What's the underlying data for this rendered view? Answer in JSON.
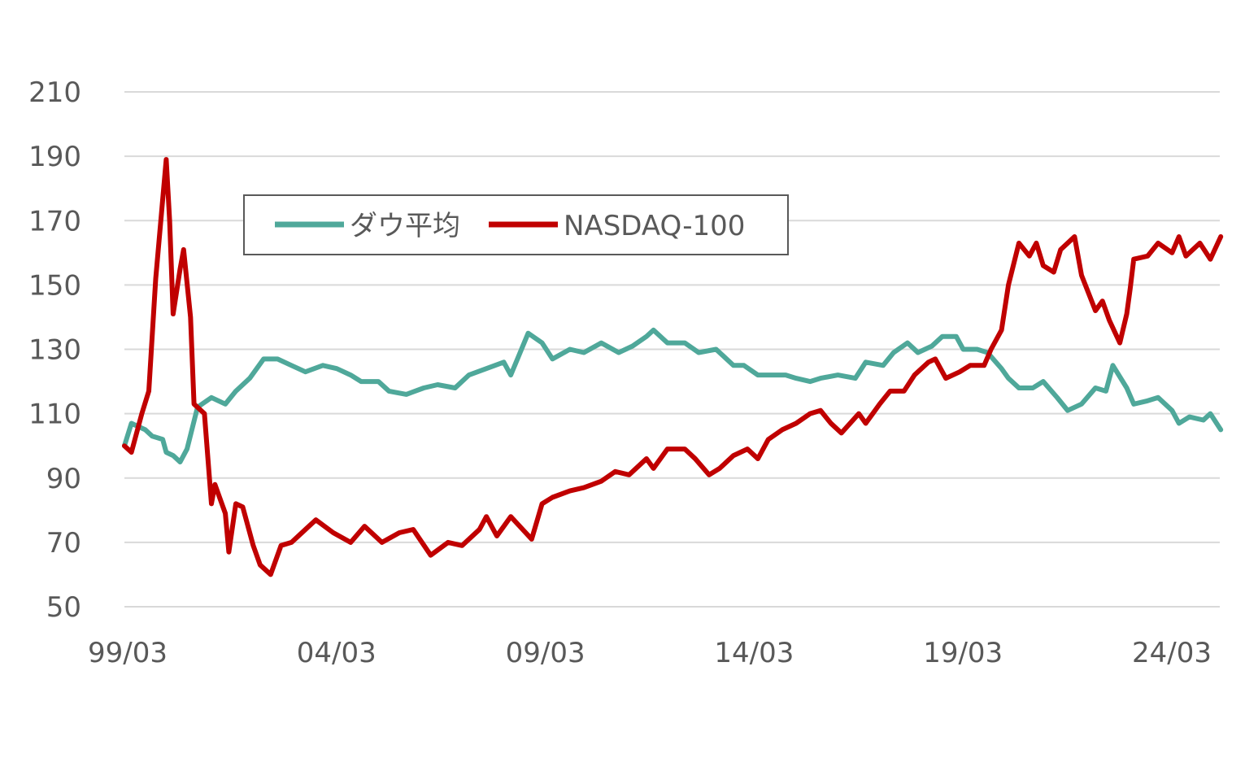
{
  "chart_data": {
    "type": "line",
    "title": "",
    "xlabel": "",
    "ylabel": "",
    "ylim": [
      50,
      210
    ],
    "yticks": [
      50,
      70,
      90,
      110,
      130,
      150,
      170,
      190,
      210
    ],
    "ytick_labels": [
      "50",
      "70",
      "90",
      "110",
      "130",
      "150",
      "170",
      "190",
      "210"
    ],
    "xlim": [
      "1999/03",
      "2025/06"
    ],
    "xticks": [
      "1999/03",
      "2004/03",
      "2009/03",
      "2014/03",
      "2019/03",
      "2024/03"
    ],
    "xtick_labels": [
      "99/03",
      "04/03",
      "09/03",
      "14/03",
      "19/03",
      "24/03"
    ],
    "grid": "horizontal",
    "legend_placement": "top-left, inside, boxed",
    "series": [
      {
        "name": "ダウ平均",
        "color": "#4fa89a",
        "x": [
          "1999/03",
          "1999/05",
          "1999/07",
          "1999/09",
          "1999/11",
          "2000/02",
          "2000/03",
          "2000/05",
          "2000/07",
          "2000/09",
          "2000/12",
          "2001/04",
          "2001/08",
          "2001/11",
          "2002/03",
          "2002/07",
          "2002/11",
          "2003/03",
          "2003/07",
          "2003/12",
          "2004/04",
          "2004/08",
          "2004/11",
          "2005/04",
          "2005/07",
          "2005/12",
          "2006/05",
          "2006/09",
          "2007/02",
          "2007/06",
          "2007/11",
          "2008/04",
          "2008/06",
          "2008/11",
          "2009/03",
          "2009/06",
          "2009/11",
          "2010/03",
          "2010/08",
          "2011/01",
          "2011/05",
          "2011/09",
          "2011/11",
          "2012/03",
          "2012/08",
          "2012/12",
          "2013/05",
          "2013/10",
          "2014/01",
          "2014/05",
          "2014/08",
          "2015/01",
          "2015/04",
          "2015/08",
          "2015/11",
          "2016/04",
          "2016/09",
          "2016/12",
          "2017/05",
          "2017/08",
          "2017/12",
          "2018/03",
          "2018/07",
          "2018/10",
          "2019/02",
          "2019/04",
          "2019/08",
          "2019/11",
          "2020/03",
          "2020/05",
          "2020/08",
          "2020/12",
          "2021/03",
          "2021/07",
          "2021/10",
          "2022/02",
          "2022/06",
          "2022/09",
          "2022/11",
          "2023/03",
          "2023/05",
          "2023/09",
          "2023/12",
          "2024/04",
          "2024/06",
          "2024/09",
          "2025/01",
          "2025/03",
          "2025/06"
        ],
        "values": [
          100,
          107,
          106,
          105,
          103,
          102,
          98,
          97,
          95,
          99,
          112,
          115,
          113,
          117,
          121,
          127,
          127,
          125,
          123,
          125,
          124,
          122,
          120,
          120,
          117,
          116,
          118,
          119,
          118,
          122,
          124,
          126,
          122,
          135,
          132,
          127,
          130,
          129,
          132,
          129,
          131,
          134,
          136,
          132,
          132,
          129,
          130,
          125,
          125,
          122,
          122,
          122,
          121,
          120,
          121,
          122,
          121,
          126,
          125,
          129,
          132,
          129,
          131,
          134,
          134,
          130,
          130,
          129,
          124,
          121,
          118,
          118,
          120,
          115,
          111,
          113,
          118,
          117,
          125,
          118,
          113,
          114,
          115,
          111,
          107,
          109,
          108,
          110,
          105
        ]
      },
      {
        "name": "NASDAQ-100",
        "color": "#c00000",
        "x": [
          "1999/03",
          "1999/05",
          "1999/08",
          "1999/10",
          "1999/12",
          "2000/03",
          "2000/04",
          "2000/05",
          "2000/07",
          "2000/08",
          "2000/10",
          "2000/11",
          "2001/02",
          "2001/04",
          "2001/05",
          "2001/08",
          "2001/09",
          "2001/11",
          "2002/01",
          "2002/04",
          "2002/06",
          "2002/09",
          "2002/12",
          "2003/03",
          "2003/07",
          "2003/10",
          "2004/03",
          "2004/08",
          "2004/12",
          "2005/05",
          "2005/10",
          "2006/02",
          "2006/07",
          "2006/12",
          "2007/04",
          "2007/09",
          "2007/11",
          "2008/02",
          "2008/06",
          "2008/12",
          "2009/03",
          "2009/06",
          "2009/11",
          "2010/03",
          "2010/08",
          "2010/12",
          "2011/04",
          "2011/09",
          "2011/11",
          "2012/03",
          "2012/08",
          "2012/11",
          "2013/03",
          "2013/06",
          "2013/10",
          "2014/02",
          "2014/05",
          "2014/08",
          "2014/12",
          "2015/04",
          "2015/08",
          "2015/11",
          "2016/02",
          "2016/05",
          "2016/10",
          "2016/12",
          "2017/04",
          "2017/07",
          "2017/11",
          "2018/02",
          "2018/06",
          "2018/08",
          "2018/11",
          "2019/03",
          "2019/06",
          "2019/10",
          "2019/12",
          "2020/03",
          "2020/05",
          "2020/08",
          "2020/11",
          "2021/01",
          "2021/03",
          "2021/06",
          "2021/08",
          "2021/12",
          "2022/02",
          "2022/06",
          "2022/08",
          "2022/10",
          "2023/01",
          "2023/03",
          "2023/04",
          "2023/05",
          "2023/09",
          "2023/12",
          "2024/04",
          "2024/06",
          "2024/08",
          "2024/12",
          "2025/03",
          "2025/06"
        ],
        "values": [
          100,
          98,
          110,
          117,
          152,
          189,
          170,
          141,
          155,
          161,
          140,
          113,
          110,
          82,
          88,
          79,
          67,
          82,
          81,
          69,
          63,
          60,
          69,
          70,
          74,
          77,
          73,
          70,
          75,
          70,
          73,
          74,
          66,
          70,
          69,
          74,
          78,
          72,
          78,
          71,
          82,
          84,
          86,
          87,
          89,
          92,
          91,
          96,
          93,
          99,
          99,
          96,
          91,
          93,
          97,
          99,
          96,
          102,
          105,
          107,
          110,
          111,
          107,
          104,
          110,
          107,
          113,
          117,
          117,
          122,
          126,
          127,
          121,
          123,
          125,
          125,
          130,
          136,
          150,
          163,
          159,
          163,
          156,
          154,
          161,
          165,
          153,
          142,
          145,
          139,
          132,
          141,
          149,
          158,
          159,
          163,
          160,
          165,
          159,
          163,
          158,
          165
        ]
      }
    ]
  }
}
